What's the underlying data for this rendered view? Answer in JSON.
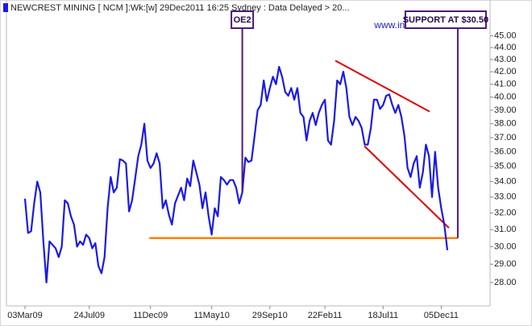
{
  "chart_data": {
    "type": "line",
    "title": "NEWCREST MINING [ NCM ]:Wk:[w]  29Dec2011 16:25 Sydney : Data Delayed > 20...",
    "watermark": "www.incrediblecharts.com",
    "color": "#1a1ae6",
    "ylog": true,
    "grid": false,
    "ylim": [
      26.85,
      46.6
    ],
    "yticks": [
      {
        "value": 28,
        "label": "28.00"
      },
      {
        "value": 29,
        "label": "29.00"
      },
      {
        "value": 30,
        "label": "30.00"
      },
      {
        "value": 31,
        "label": "31.00"
      },
      {
        "value": 32,
        "label": "32.00"
      },
      {
        "value": 33,
        "label": "33.00"
      },
      {
        "value": 34,
        "label": "34.00"
      },
      {
        "value": 35,
        "label": "35.00"
      },
      {
        "value": 36,
        "label": "36.00"
      },
      {
        "value": 37,
        "label": "37.00"
      },
      {
        "value": 38,
        "label": "38.00"
      },
      {
        "value": 39,
        "label": "39.00"
      },
      {
        "value": 40,
        "label": "40.00"
      },
      {
        "value": 41,
        "label": "41.00"
      },
      {
        "value": 42,
        "label": "42.00"
      },
      {
        "value": 43,
        "label": "43.00"
      },
      {
        "value": 44,
        "label": "44.00"
      },
      {
        "value": 45,
        "label": "45.00"
      }
    ],
    "categories": [
      "03Mar09",
      null,
      null,
      null,
      null,
      null,
      null,
      null,
      null,
      null,
      null,
      null,
      null,
      null,
      null,
      null,
      null,
      null,
      null,
      null,
      null,
      "24Jul09",
      null,
      null,
      null,
      null,
      null,
      null,
      null,
      null,
      null,
      null,
      null,
      null,
      null,
      null,
      null,
      null,
      null,
      null,
      null,
      "11Dec09",
      null,
      null,
      null,
      null,
      null,
      null,
      null,
      null,
      null,
      null,
      null,
      null,
      null,
      null,
      null,
      null,
      null,
      null,
      null,
      "11May10",
      null,
      null,
      null,
      null,
      null,
      null,
      null,
      null,
      null,
      null,
      null,
      null,
      null,
      null,
      null,
      null,
      null,
      null,
      "29Sep10",
      null,
      null,
      null,
      null,
      null,
      null,
      null,
      null,
      null,
      null,
      null,
      null,
      null,
      null,
      null,
      null,
      null,
      "22Feb11",
      null,
      null,
      null,
      null,
      null,
      null,
      null,
      null,
      null,
      null,
      null,
      null,
      null,
      null,
      null,
      null,
      null,
      null,
      "18Jul11",
      null,
      null,
      null,
      null,
      null,
      null,
      null,
      null,
      null,
      null,
      null,
      null,
      null,
      null,
      null,
      null,
      null,
      null,
      "05Dec11",
      null,
      null
    ],
    "values": [
      32.9,
      30.8,
      30.9,
      32.6,
      34.0,
      33.3,
      30.3,
      28.0,
      30.3,
      30.1,
      29.9,
      29.4,
      30.0,
      32.8,
      32.6,
      31.8,
      31.3,
      30.0,
      30.3,
      30.1,
      30.7,
      30.5,
      29.9,
      30.2,
      28.9,
      28.5,
      29.4,
      32.3,
      34.3,
      33.3,
      33.6,
      35.5,
      35.4,
      35.2,
      32.1,
      32.8,
      34.2,
      35.7,
      36.5,
      38.0,
      35.4,
      34.9,
      35.2,
      35.9,
      35.2,
      32.3,
      32.8,
      31.9,
      31.3,
      32.6,
      33.1,
      33.6,
      32.8,
      34.2,
      33.7,
      35.4,
      34.6,
      33.8,
      32.3,
      33.3,
      31.8,
      30.7,
      32.3,
      31.8,
      34.3,
      34.1,
      33.8,
      34.1,
      34.1,
      33.6,
      32.6,
      33.3,
      35.6,
      35.3,
      35.4,
      37.1,
      39.0,
      39.4,
      41.3,
      39.7,
      40.7,
      41.6,
      41.0,
      42.4,
      41.6,
      40.4,
      40.1,
      40.7,
      39.8,
      40.7,
      38.8,
      38.5,
      36.8,
      38.2,
      38.8,
      37.9,
      38.8,
      39.4,
      39.8,
      36.8,
      36.5,
      38.2,
      41.3,
      41.0,
      42.0,
      40.7,
      38.5,
      37.9,
      38.5,
      38.2,
      37.7,
      36.5,
      36.5,
      37.7,
      39.8,
      39.8,
      39.1,
      39.4,
      40.1,
      40.2,
      39.4,
      38.8,
      39.4,
      38.5,
      37.1,
      34.9,
      34.3,
      35.2,
      35.7,
      33.6,
      34.6,
      36.5,
      35.7,
      33.0,
      36.0,
      33.6,
      32.3,
      31.3,
      29.8
    ],
    "annotations": [
      {
        "label": "OE2",
        "x": 71
      }
    ],
    "support": {
      "label": "SUPPORT AT $30.50",
      "value": 30.5,
      "x": [
        40.6,
        141.4
      ],
      "color": "#ff8000"
    },
    "trendlines": [
      {
        "color": "#e00000",
        "x": [
          101.4,
          132.2
        ],
        "values": [
          42.9,
          38.9
        ]
      },
      {
        "color": "#e00000",
        "x": [
          110.9,
          138.5
        ],
        "values": [
          36.4,
          31.1
        ]
      }
    ]
  }
}
